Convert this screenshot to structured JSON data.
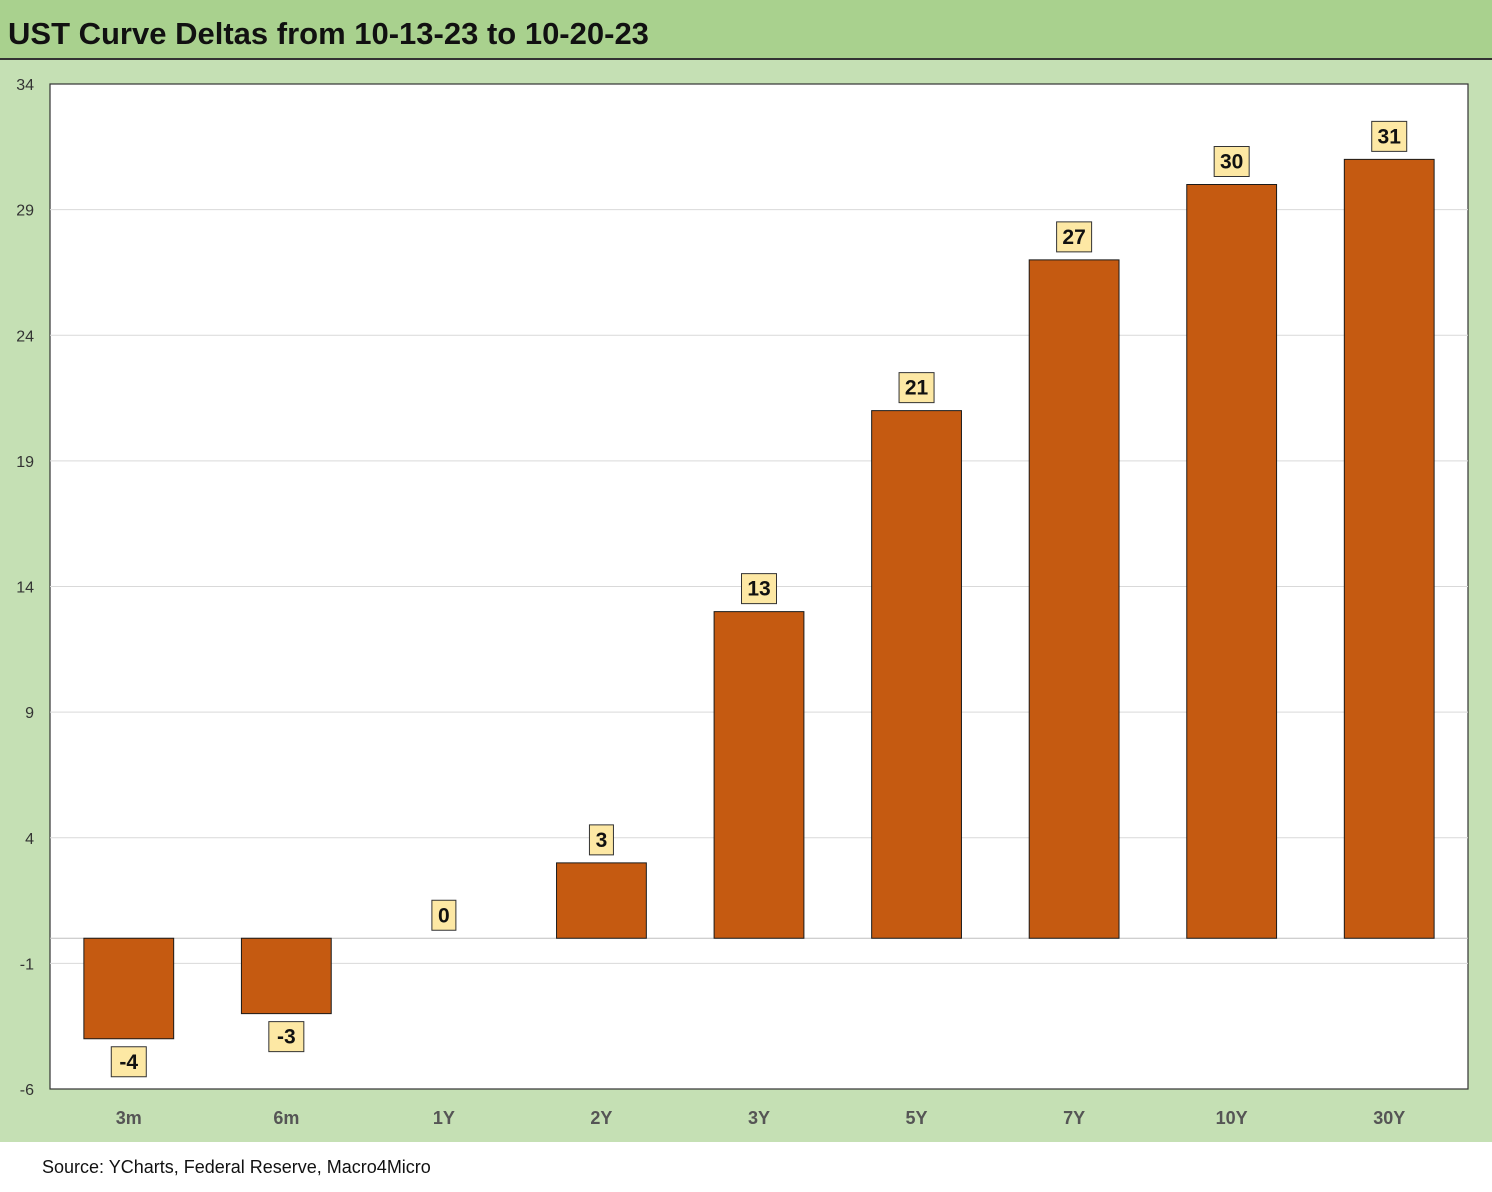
{
  "title": "UST Curve Deltas from 10-13-23 to 10-20-23",
  "source": "Source: YCharts, Federal Reserve, Macro4Micro",
  "colors": {
    "header_bg": "#a9d18e",
    "chart_bg": "#c5e0b4",
    "plot_bg": "#ffffff",
    "bar": "#c55a11",
    "data_label_bg": "#fde8a4"
  },
  "chart_data": {
    "type": "bar",
    "categories": [
      "3m",
      "6m",
      "1Y",
      "2Y",
      "3Y",
      "5Y",
      "7Y",
      "10Y",
      "30Y"
    ],
    "values": [
      -4,
      -3,
      0,
      3,
      13,
      21,
      27,
      30,
      31
    ],
    "data_labels": [
      "-4",
      "-3",
      "0",
      "3",
      "13",
      "21",
      "27",
      "30",
      "31"
    ],
    "ylim": [
      -6,
      34
    ],
    "yticks": [
      -6,
      -1,
      4,
      9,
      14,
      19,
      24,
      29,
      34
    ],
    "xlabel": "",
    "ylabel": "",
    "grid": true,
    "legend": "none"
  }
}
